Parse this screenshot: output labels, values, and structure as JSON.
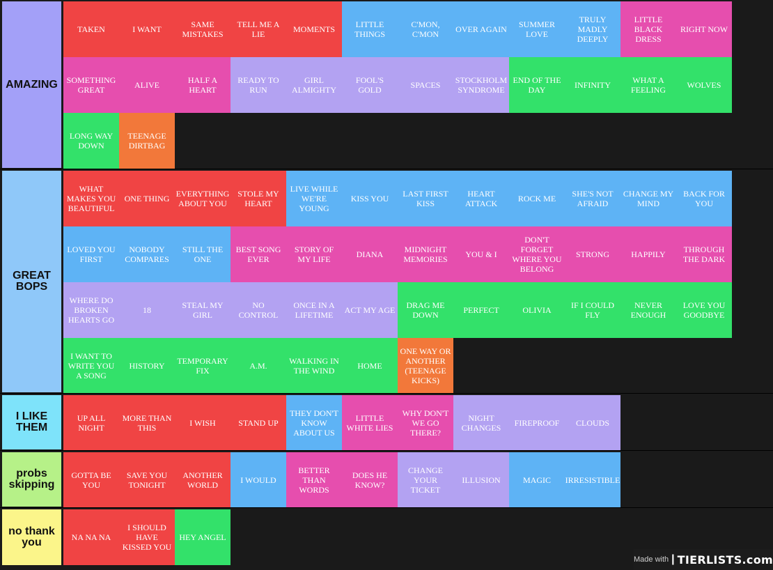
{
  "colors": {
    "red": "#f04444",
    "blue": "#5eb3f5",
    "pink": "#e64eae",
    "lavender": "#b3a2f2",
    "green": "#33e16a",
    "orange": "#f2783a"
  },
  "watermark": {
    "made_with": "Made with",
    "brand": "TIERLISTS.com"
  },
  "tiers": [
    {
      "label": "AMAZING",
      "color": "#a3a0f8",
      "items": [
        {
          "text": "TAKEN",
          "c": "red"
        },
        {
          "text": "I WANT",
          "c": "red"
        },
        {
          "text": "SAME MISTAKES",
          "c": "red"
        },
        {
          "text": "TELL ME A LIE",
          "c": "red"
        },
        {
          "text": "MOMENTS",
          "c": "red"
        },
        {
          "text": "LITTLE THINGS",
          "c": "blue"
        },
        {
          "text": "C'MON, C'MON",
          "c": "blue"
        },
        {
          "text": "OVER AGAIN",
          "c": "blue"
        },
        {
          "text": "SUMMER LOVE",
          "c": "blue"
        },
        {
          "text": "TRULY MADLY DEEPLY",
          "c": "blue"
        },
        {
          "text": "LITTLE BLACK DRESS",
          "c": "pink"
        },
        {
          "text": "RIGHT NOW",
          "c": "pink"
        },
        {
          "text": "SOMETHING GREAT",
          "c": "pink"
        },
        {
          "text": "ALIVE",
          "c": "pink"
        },
        {
          "text": "HALF A HEART",
          "c": "pink"
        },
        {
          "text": "READY TO RUN",
          "c": "lavender"
        },
        {
          "text": "GIRL ALMIGHTY",
          "c": "lavender"
        },
        {
          "text": "FOOL'S GOLD",
          "c": "lavender"
        },
        {
          "text": "SPACES",
          "c": "lavender"
        },
        {
          "text": "STOCKHOLM SYNDROME",
          "c": "lavender"
        },
        {
          "text": "END OF THE DAY",
          "c": "green"
        },
        {
          "text": "INFINITY",
          "c": "green"
        },
        {
          "text": "WHAT A FEELING",
          "c": "green"
        },
        {
          "text": "WOLVES",
          "c": "green"
        },
        {
          "text": "LONG WAY DOWN",
          "c": "green"
        },
        {
          "text": "TEENAGE DIRTBAG",
          "c": "orange"
        }
      ]
    },
    {
      "label": "GREAT BOPS",
      "color": "#8fc8f9",
      "items": [
        {
          "text": "WHAT MAKES YOU BEAUTIFUL",
          "c": "red"
        },
        {
          "text": "ONE THING",
          "c": "red"
        },
        {
          "text": "EVERYTHING ABOUT YOU",
          "c": "red"
        },
        {
          "text": "STOLE MY HEART",
          "c": "red"
        },
        {
          "text": "LIVE WHILE WE'RE YOUNG",
          "c": "blue"
        },
        {
          "text": "KISS YOU",
          "c": "blue"
        },
        {
          "text": "LAST FIRST KISS",
          "c": "blue"
        },
        {
          "text": "HEART ATTACK",
          "c": "blue"
        },
        {
          "text": "ROCK ME",
          "c": "blue"
        },
        {
          "text": "SHE'S NOT AFRAID",
          "c": "blue"
        },
        {
          "text": "CHANGE MY MIND",
          "c": "blue"
        },
        {
          "text": "BACK FOR YOU",
          "c": "blue"
        },
        {
          "text": "LOVED YOU FIRST",
          "c": "blue"
        },
        {
          "text": "NOBODY COMPARES",
          "c": "blue"
        },
        {
          "text": "STILL THE ONE",
          "c": "blue"
        },
        {
          "text": "BEST SONG EVER",
          "c": "pink"
        },
        {
          "text": "STORY OF MY LIFE",
          "c": "pink"
        },
        {
          "text": "DIANA",
          "c": "pink"
        },
        {
          "text": "MIDNIGHT MEMORIES",
          "c": "pink"
        },
        {
          "text": "YOU & I",
          "c": "pink"
        },
        {
          "text": "DON'T FORGET WHERE YOU BELONG",
          "c": "pink"
        },
        {
          "text": "STRONG",
          "c": "pink"
        },
        {
          "text": "HAPPILY",
          "c": "pink"
        },
        {
          "text": "THROUGH THE DARK",
          "c": "pink"
        },
        {
          "text": "WHERE DO BROKEN HEARTS GO",
          "c": "lavender"
        },
        {
          "text": "18",
          "c": "lavender"
        },
        {
          "text": "STEAL MY GIRL",
          "c": "lavender"
        },
        {
          "text": "NO CONTROL",
          "c": "lavender"
        },
        {
          "text": "ONCE IN A LIFETIME",
          "c": "lavender"
        },
        {
          "text": "ACT MY AGE",
          "c": "lavender"
        },
        {
          "text": "DRAG ME DOWN",
          "c": "green"
        },
        {
          "text": "PERFECT",
          "c": "green"
        },
        {
          "text": "OLIVIA",
          "c": "green"
        },
        {
          "text": "IF I COULD FLY",
          "c": "green"
        },
        {
          "text": "NEVER ENOUGH",
          "c": "green"
        },
        {
          "text": "LOVE YOU GOODBYE",
          "c": "green"
        },
        {
          "text": "I WANT TO WRITE YOU A SONG",
          "c": "green"
        },
        {
          "text": "HISTORY",
          "c": "green"
        },
        {
          "text": "TEMPORARY FIX",
          "c": "green"
        },
        {
          "text": "A.M.",
          "c": "green"
        },
        {
          "text": "WALKING IN THE WIND",
          "c": "green"
        },
        {
          "text": "HOME",
          "c": "green"
        },
        {
          "text": "ONE WAY OR ANOTHER (TEENAGE KICKS)",
          "c": "orange"
        }
      ]
    },
    {
      "label": "I LIKE THEM",
      "color": "#7ee3fa",
      "items": [
        {
          "text": "UP ALL NIGHT",
          "c": "red"
        },
        {
          "text": "MORE THAN THIS",
          "c": "red"
        },
        {
          "text": "I WISH",
          "c": "red"
        },
        {
          "text": "STAND UP",
          "c": "red"
        },
        {
          "text": "THEY DON'T KNOW ABOUT US",
          "c": "blue"
        },
        {
          "text": "LITTLE WHITE LIES",
          "c": "pink"
        },
        {
          "text": "WHY DON'T WE GO THERE?",
          "c": "pink"
        },
        {
          "text": "NIGHT CHANGES",
          "c": "lavender"
        },
        {
          "text": "FIREPROOF",
          "c": "lavender"
        },
        {
          "text": "CLOUDS",
          "c": "lavender"
        }
      ]
    },
    {
      "label": "probs skipping",
      "color": "#b6f188",
      "items": [
        {
          "text": "GOTTA BE YOU",
          "c": "red"
        },
        {
          "text": "SAVE YOU TONIGHT",
          "c": "red"
        },
        {
          "text": "ANOTHER WORLD",
          "c": "red"
        },
        {
          "text": "I WOULD",
          "c": "blue"
        },
        {
          "text": "BETTER THAN WORDS",
          "c": "pink"
        },
        {
          "text": "DOES HE KNOW?",
          "c": "pink"
        },
        {
          "text": "CHANGE YOUR TICKET",
          "c": "lavender"
        },
        {
          "text": "ILLUSION",
          "c": "lavender"
        },
        {
          "text": "MAGIC",
          "c": "blue"
        },
        {
          "text": "IRRESISTIBLE",
          "c": "blue"
        }
      ]
    },
    {
      "label": "no thank you",
      "color": "#fbf58a",
      "items": [
        {
          "text": "NA NA NA",
          "c": "red"
        },
        {
          "text": "I SHOULD HAVE KISSED YOU",
          "c": "red"
        },
        {
          "text": "HEY ANGEL",
          "c": "green"
        }
      ]
    }
  ]
}
